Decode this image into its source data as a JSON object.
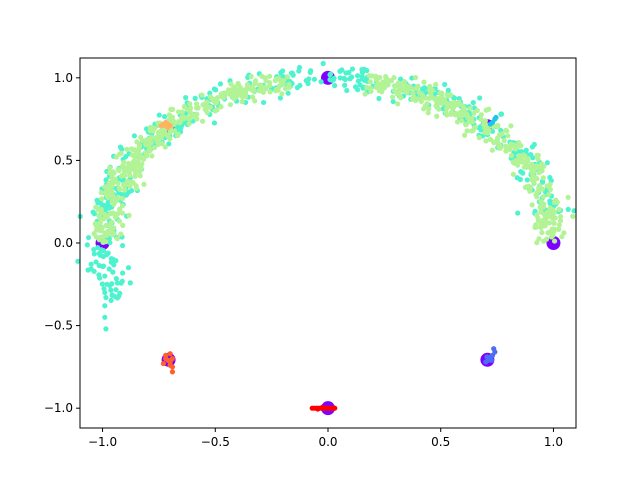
{
  "chart_data": {
    "type": "scatter",
    "title": "",
    "xlabel": "",
    "ylabel": "",
    "xlim": [
      -1.1,
      1.1
    ],
    "ylim": [
      -1.12,
      1.12
    ],
    "grid": false,
    "x_ticks": [
      -1.0,
      -0.5,
      0.0,
      0.5,
      1.0
    ],
    "x_tick_labels": [
      "−1.0",
      "−0.5",
      "0.0",
      "0.5",
      "1.0"
    ],
    "y_ticks": [
      -1.0,
      -0.5,
      0.0,
      0.5,
      1.0
    ],
    "y_tick_labels": [
      "−1.0",
      "−0.5",
      "0.0",
      "0.5",
      "1.0"
    ],
    "series": [
      {
        "color": "#8000ff",
        "marker_size": "large",
        "points": [
          [
            -1.0,
            0.0
          ],
          [
            -0.707,
            0.707
          ],
          [
            0.0,
            1.0
          ],
          [
            0.707,
            0.707
          ],
          [
            1.0,
            0.0
          ],
          [
            0.0,
            -1.0
          ],
          [
            -0.707,
            -0.707
          ],
          [
            0.707,
            -0.707
          ]
        ]
      },
      {
        "color": "#4df3ce",
        "marker_size": "small",
        "shape": "upper-left arc",
        "arc_angles_deg": [
          10,
          200
        ],
        "radius": 1.0,
        "spread": 0.04,
        "count": 500,
        "extra_points": [
          [
            -0.99,
            -0.2
          ],
          [
            -0.99,
            -0.3
          ],
          [
            -0.99,
            -0.38
          ],
          [
            -0.99,
            -0.45
          ],
          [
            -0.985,
            -0.52
          ],
          [
            -0.98,
            -0.25
          ],
          [
            -0.985,
            -0.33
          ]
        ]
      },
      {
        "color": "#b2f396",
        "marker_size": "small",
        "shape": "two arcs",
        "arc_angles_deg": [
          [
            0,
            80
          ],
          [
            100,
            180
          ]
        ],
        "radius": 0.99,
        "spread": 0.035,
        "count": 700
      },
      {
        "color": "#1cc6e8",
        "marker_size": "small",
        "points": [
          [
            0.72,
            0.72
          ],
          [
            0.74,
            0.75
          ],
          [
            0.73,
            0.73
          ],
          [
            0.745,
            0.76
          ]
        ]
      },
      {
        "color": "#ffb360",
        "marker_size": "small",
        "points": [
          [
            -0.72,
            0.71
          ],
          [
            -0.71,
            0.72
          ],
          [
            -0.73,
            0.72
          ],
          [
            -0.7,
            0.71
          ],
          [
            -0.72,
            0.73
          ],
          [
            -0.74,
            0.71
          ],
          [
            -0.71,
            0.7
          ]
        ]
      },
      {
        "color": "#4c6ef5",
        "marker_size": "small",
        "points": [
          [
            0.71,
            -0.71
          ],
          [
            0.72,
            -0.69
          ],
          [
            0.73,
            -0.68
          ],
          [
            0.74,
            -0.66
          ],
          [
            0.735,
            -0.64
          ],
          [
            0.7,
            -0.72
          ],
          [
            0.715,
            -0.7
          ],
          [
            0.725,
            -0.71
          ],
          [
            0.705,
            -0.69
          ]
        ]
      },
      {
        "color": "#ff5f2e",
        "marker_size": "small",
        "points": [
          [
            -0.71,
            -0.71
          ],
          [
            -0.72,
            -0.7
          ],
          [
            -0.7,
            -0.72
          ],
          [
            -0.69,
            -0.7
          ],
          [
            -0.72,
            -0.68
          ],
          [
            -0.7,
            -0.67
          ],
          [
            -0.69,
            -0.75
          ],
          [
            -0.69,
            -0.78
          ],
          [
            -0.73,
            -0.73
          ],
          [
            -0.7,
            -0.74
          ]
        ]
      },
      {
        "color": "#ff0000",
        "marker_size": "small",
        "points": [
          [
            -0.07,
            -1.0
          ],
          [
            -0.06,
            -1.0
          ],
          [
            -0.05,
            -1.0
          ],
          [
            -0.04,
            -1.0
          ],
          [
            -0.03,
            -1.0
          ],
          [
            -0.02,
            -1.0
          ],
          [
            -0.01,
            -1.0
          ],
          [
            0.0,
            -1.0
          ],
          [
            0.01,
            -1.0
          ],
          [
            0.02,
            -1.0
          ],
          [
            0.03,
            -1.0
          ],
          [
            -0.045,
            -1.005
          ],
          [
            -0.025,
            -0.995
          ]
        ]
      }
    ]
  }
}
